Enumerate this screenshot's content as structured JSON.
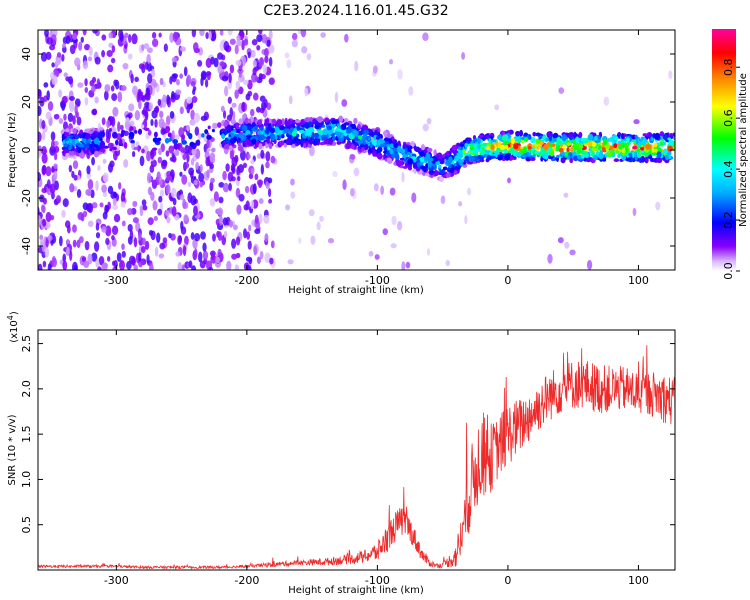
{
  "figure_title": "C2E3.2024.116.01.45.G32",
  "chart_data": [
    {
      "type": "heatmap",
      "title": "C2E3.2024.116.01.45.G32",
      "xlabel": "Height of straight line (km)",
      "ylabel": "Frequency (Hz)",
      "xlim": [
        -360,
        128
      ],
      "ylim": [
        -50,
        50
      ],
      "xticks": [
        -300,
        -200,
        -100,
        0,
        100
      ],
      "yticks": [
        -40,
        -20,
        0,
        20,
        40
      ],
      "colorbar": {
        "label": "Normalized spectral amplitude",
        "range": [
          0.0,
          0.95
        ],
        "ticks": [
          0.0,
          0.2,
          0.4,
          0.6,
          0.8
        ],
        "colormap": [
          "#ffffff",
          "#8a00ff",
          "#0000ff",
          "#00ffff",
          "#00ff00",
          "#ffff00",
          "#ff8000",
          "#ff0000",
          "#ff00a0"
        ]
      },
      "ridge": {
        "description_points_x": [
          -340,
          -320,
          -300,
          -250,
          -200,
          -160,
          -130,
          -100,
          -80,
          -60,
          -50,
          -40,
          -30,
          -10,
          0,
          50,
          100,
          128
        ],
        "frequency_hz": [
          3,
          3,
          5,
          4,
          7,
          7,
          8,
          3,
          -2,
          -5,
          -7,
          -4,
          0,
          1,
          2,
          1,
          1,
          1
        ],
        "peak_amplitude": [
          0.35,
          0.3,
          0.25,
          0.25,
          0.35,
          0.4,
          0.45,
          0.4,
          0.35,
          0.4,
          0.3,
          0.5,
          0.6,
          0.7,
          0.8,
          0.85,
          0.8,
          0.75
        ]
      }
    },
    {
      "type": "line",
      "xlabel": "Height of straight line (km)",
      "ylabel": "SNR (10 * v/v)",
      "y_multiplier": "(x10^4)",
      "xlim": [
        -360,
        128
      ],
      "ylim": [
        0,
        2.65
      ],
      "xticks": [
        -300,
        -200,
        -100,
        0,
        100
      ],
      "yticks": [
        0.5,
        1.0,
        1.5,
        2.0,
        2.5
      ],
      "ytick_labels": [
        "0.5",
        "1.0",
        "1.5",
        "2.0",
        "2.5"
      ],
      "series": [
        {
          "color": "#ee2a2a",
          "x": [
            -360,
            -340,
            -320,
            -300,
            -280,
            -260,
            -240,
            -220,
            -200,
            -180,
            -160,
            -140,
            -120,
            -110,
            -100,
            -95,
            -90,
            -85,
            -80,
            -75,
            -70,
            -65,
            -60,
            -55,
            -50,
            -45,
            -40,
            -35,
            -30,
            -25,
            -20,
            -15,
            -10,
            -5,
            0,
            10,
            20,
            30,
            40,
            50,
            60,
            70,
            80,
            90,
            100,
            110,
            120,
            128
          ],
          "y": [
            0.04,
            0.04,
            0.04,
            0.04,
            0.03,
            0.03,
            0.03,
            0.03,
            0.04,
            0.06,
            0.08,
            0.09,
            0.12,
            0.15,
            0.2,
            0.3,
            0.4,
            0.5,
            0.55,
            0.45,
            0.3,
            0.15,
            0.08,
            0.05,
            0.05,
            0.1,
            0.15,
            0.4,
            0.8,
            1.1,
            1.3,
            1.2,
            1.3,
            1.4,
            1.5,
            1.6,
            1.75,
            1.9,
            2.0,
            2.05,
            2.05,
            2.0,
            2.0,
            2.0,
            1.95,
            1.95,
            1.9,
            1.85
          ],
          "noise": [
            0.01,
            0.01,
            0.01,
            0.01,
            0.01,
            0.01,
            0.01,
            0.01,
            0.01,
            0.02,
            0.02,
            0.03,
            0.04,
            0.05,
            0.08,
            0.1,
            0.12,
            0.12,
            0.12,
            0.1,
            0.08,
            0.05,
            0.03,
            0.02,
            0.02,
            0.05,
            0.1,
            0.2,
            0.3,
            0.35,
            0.35,
            0.3,
            0.25,
            0.25,
            0.25,
            0.22,
            0.2,
            0.2,
            0.2,
            0.2,
            0.2,
            0.2,
            0.18,
            0.18,
            0.18,
            0.18,
            0.2,
            0.2
          ]
        }
      ]
    }
  ]
}
